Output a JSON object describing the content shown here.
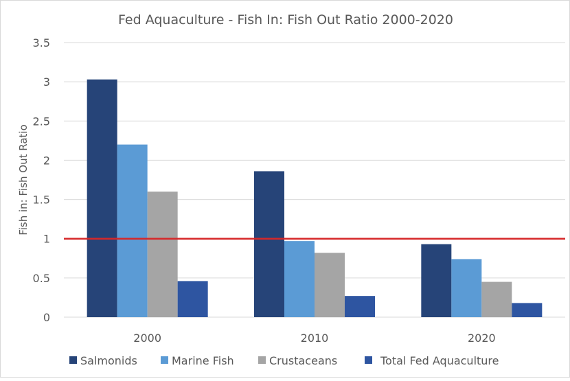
{
  "chart_data": {
    "type": "bar",
    "title": "Fed Aquaculture - Fish In: Fish Out Ratio 2000-2020",
    "xlabel": "",
    "ylabel": "Fish in: Fish Out Ratio",
    "ylim": [
      0,
      3.5
    ],
    "yticks": [
      "0",
      "0.5",
      "1",
      "1.5",
      "2",
      "2.5",
      "3",
      "3.5"
    ],
    "grid": true,
    "legend": "bottom",
    "categories": [
      "2000",
      "2010",
      "2020"
    ],
    "series": [
      {
        "name": "Salmonids",
        "color": "#264478",
        "values": [
          3.03,
          1.86,
          0.93
        ]
      },
      {
        "name": "Marine Fish",
        "color": "#5b9bd5",
        "values": [
          2.2,
          0.97,
          0.74
        ]
      },
      {
        "name": "Crustaceans",
        "color": "#a5a5a5",
        "values": [
          1.6,
          0.82,
          0.45
        ]
      },
      {
        "name": "Total Fed Aquaculture",
        "color": "#2e55a1",
        "values": [
          0.46,
          0.27,
          0.18
        ]
      }
    ],
    "reference_line": {
      "value": 1,
      "color": "#d62728"
    }
  }
}
